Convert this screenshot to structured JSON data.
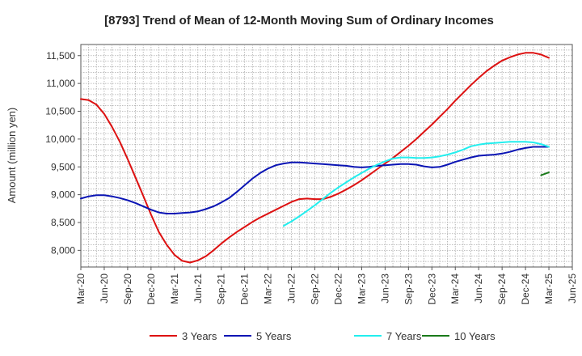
{
  "chart_data": {
    "type": "line",
    "title": "[8793]  Trend of Mean of 12-Month Moving Sum of Ordinary Incomes",
    "xlabel": "",
    "ylabel": "Amount (million yen)",
    "ylim": [
      7700,
      11700
    ],
    "yticks": [
      8000,
      8500,
      9000,
      9500,
      10000,
      10500,
      11000,
      11500
    ],
    "ytick_labels": [
      "8,000",
      "8,500",
      "9,000",
      "9,500",
      "10,000",
      "10,500",
      "11,000",
      "11,500"
    ],
    "xlim": [
      0,
      63
    ],
    "xticks": [
      0,
      3,
      6,
      9,
      12,
      15,
      18,
      21,
      24,
      27,
      30,
      33,
      36,
      39,
      42,
      45,
      48,
      51,
      54,
      57,
      60,
      63
    ],
    "xtick_labels": [
      "Mar-20",
      "Jun-20",
      "Sep-20",
      "Dec-20",
      "Mar-21",
      "Jun-21",
      "Sep-21",
      "Dec-21",
      "Mar-22",
      "Jun-22",
      "Sep-22",
      "Dec-22",
      "Mar-23",
      "Jun-23",
      "Sep-23",
      "Dec-23",
      "Mar-24",
      "Jun-24",
      "Sep-24",
      "Dec-24",
      "Mar-25",
      "Jun-25"
    ],
    "grid": true,
    "legend_position": "bottom",
    "series": [
      {
        "name": "3 Years",
        "color": "#dd1111",
        "x": [
          0,
          1,
          2,
          3,
          4,
          5,
          6,
          7,
          8,
          9,
          10,
          11,
          12,
          13,
          14,
          15,
          16,
          17,
          18,
          19,
          20,
          21,
          22,
          23,
          24,
          25,
          26,
          27,
          28,
          29,
          30,
          31,
          32,
          33,
          34,
          35,
          36,
          37,
          38,
          39,
          40,
          41,
          42,
          43,
          44,
          45,
          46,
          47,
          48,
          49,
          50,
          51,
          52,
          53,
          54,
          55,
          56,
          57,
          58,
          59,
          60
        ],
        "values": [
          10720,
          10700,
          10620,
          10450,
          10220,
          9950,
          9640,
          9310,
          8980,
          8640,
          8330,
          8100,
          7920,
          7810,
          7780,
          7820,
          7890,
          8000,
          8120,
          8230,
          8330,
          8420,
          8510,
          8590,
          8660,
          8730,
          8800,
          8870,
          8920,
          8930,
          8920,
          8920,
          8960,
          9020,
          9090,
          9170,
          9260,
          9360,
          9460,
          9560,
          9660,
          9770,
          9880,
          10000,
          10130,
          10260,
          10400,
          10540,
          10690,
          10830,
          10970,
          11100,
          11220,
          11320,
          11410,
          11470,
          11520,
          11550,
          11550,
          11520,
          11460
        ]
      },
      {
        "name": "5 Years",
        "color": "#0a14b4",
        "x": [
          0,
          1,
          2,
          3,
          4,
          5,
          6,
          7,
          8,
          9,
          10,
          11,
          12,
          13,
          14,
          15,
          16,
          17,
          18,
          19,
          20,
          21,
          22,
          23,
          24,
          25,
          26,
          27,
          28,
          29,
          30,
          31,
          32,
          33,
          34,
          35,
          36,
          37,
          38,
          39,
          40,
          41,
          42,
          43,
          44,
          45,
          46,
          47,
          48,
          49,
          50,
          51,
          52,
          53,
          54,
          55,
          56,
          57,
          58,
          59,
          60
        ],
        "values": [
          8930,
          8970,
          8990,
          8990,
          8970,
          8940,
          8900,
          8850,
          8790,
          8730,
          8680,
          8660,
          8660,
          8670,
          8680,
          8700,
          8740,
          8790,
          8860,
          8940,
          9050,
          9170,
          9290,
          9390,
          9470,
          9530,
          9560,
          9580,
          9580,
          9570,
          9560,
          9550,
          9540,
          9530,
          9520,
          9500,
          9490,
          9500,
          9520,
          9530,
          9540,
          9550,
          9550,
          9540,
          9510,
          9490,
          9500,
          9540,
          9590,
          9630,
          9670,
          9700,
          9710,
          9720,
          9740,
          9770,
          9810,
          9840,
          9860,
          9860,
          9860
        ]
      },
      {
        "name": "7 Years",
        "color": "#22eeee",
        "x": [
          26,
          27,
          28,
          29,
          30,
          31,
          32,
          33,
          34,
          35,
          36,
          37,
          38,
          39,
          40,
          41,
          42,
          43,
          44,
          45,
          46,
          47,
          48,
          49,
          50,
          51,
          52,
          53,
          54,
          55,
          56,
          57,
          58,
          59,
          60
        ],
        "values": [
          8440,
          8520,
          8610,
          8710,
          8810,
          8920,
          9030,
          9130,
          9220,
          9310,
          9390,
          9470,
          9540,
          9600,
          9650,
          9670,
          9670,
          9660,
          9660,
          9670,
          9690,
          9720,
          9760,
          9810,
          9870,
          9900,
          9920,
          9930,
          9940,
          9950,
          9950,
          9950,
          9940,
          9910,
          9860
        ]
      },
      {
        "name": "10 Years",
        "color": "#1a7a1a",
        "x": [
          59,
          60
        ],
        "values": [
          9350,
          9400
        ]
      }
    ]
  }
}
